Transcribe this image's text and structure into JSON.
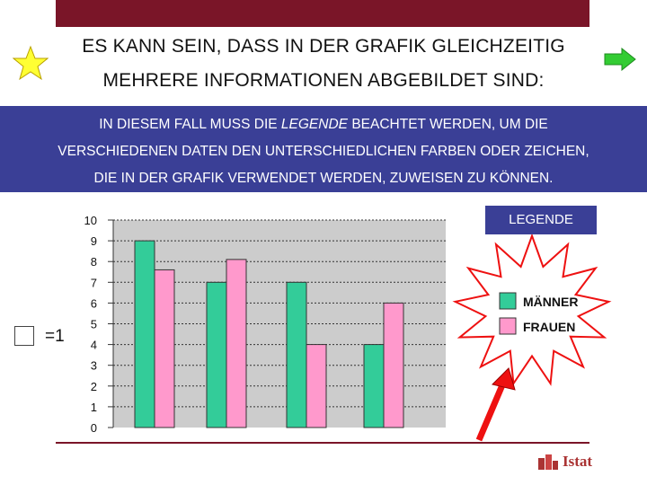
{
  "heading": {
    "line1": "ES KANN SEIN, DASS IN DER GRAFIK GLEICHZEITIG",
    "line2": "MEHRERE INFORMATIONEN ABGEBILDET SIND:"
  },
  "info": {
    "line1_a": "IN DIESEM FALL MUSS DIE ",
    "line1_em": "LEGENDE",
    "line1_b": " BEACHTET WERDEN, UM DIE",
    "line2": "VERSCHIEDENEN DATEN DEN UNTERSCHIEDLICHEN FARBEN ODER ZEICHEN,",
    "line3": "DIE IN DER GRAFIK VERWENDET WERDEN, ZUWEISEN ZU KÖNNEN."
  },
  "unit_label": "=1",
  "legend": {
    "title": "LEGENDE",
    "men": "MÄNNER",
    "women": "FRAUEN"
  },
  "logo_text": "Istat",
  "colors": {
    "top_bar": "#7a1528",
    "info_bg": "#3a3f96",
    "men": "#33cc99",
    "women": "#ff99cc",
    "plot_bg": "#cccccc",
    "star": "#ffff33",
    "arrow_green": "#33cc33",
    "arrow_red": "#ee1111"
  },
  "chart_data": {
    "type": "bar",
    "categories": [
      "",
      "",
      "",
      ""
    ],
    "series": [
      {
        "name": "MÄNNER",
        "values": [
          9,
          7,
          7,
          4
        ]
      },
      {
        "name": "FRAUEN",
        "values": [
          7.6,
          8.1,
          4,
          6
        ]
      }
    ],
    "ylim": [
      0,
      10
    ],
    "yticks": [
      "0",
      "1",
      "2",
      "3",
      "4",
      "5",
      "6",
      "7",
      "8",
      "9",
      "10"
    ],
    "grid": true,
    "legend_position": "right"
  }
}
